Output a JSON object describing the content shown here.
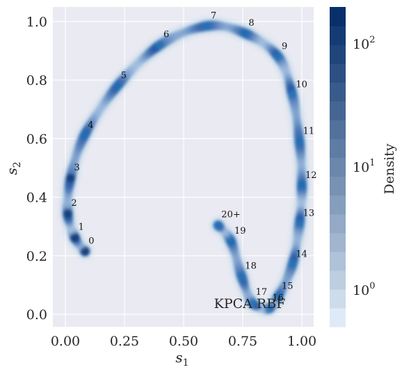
{
  "chart_data": {
    "type": "scatter",
    "title": "",
    "xlabel": "s",
    "xlabel_sub": "1",
    "ylabel": "s",
    "ylabel_sub": "2",
    "xlim": [
      -0.05,
      1.05
    ],
    "ylim": [
      -0.05,
      1.05
    ],
    "xticks": [
      {
        "value": 0.0,
        "label": "0.00"
      },
      {
        "value": 0.25,
        "label": "0.25"
      },
      {
        "value": 0.5,
        "label": "0.50"
      },
      {
        "value": 0.75,
        "label": "0.75"
      },
      {
        "value": 1.0,
        "label": "1.00"
      }
    ],
    "yticks": [
      {
        "value": 0.0,
        "label": "0.0"
      },
      {
        "value": 0.2,
        "label": "0.2"
      },
      {
        "value": 0.4,
        "label": "0.4"
      },
      {
        "value": 0.6,
        "label": "0.6"
      },
      {
        "value": 0.8,
        "label": "0.8"
      },
      {
        "value": 1.0,
        "label": "1.0"
      }
    ],
    "grid": true,
    "inset_text": "KPCA RBF",
    "clusters": [
      {
        "label": "0",
        "x": 0.083,
        "y": 0.215
      },
      {
        "label": "1",
        "x": 0.04,
        "y": 0.262
      },
      {
        "label": "2",
        "x": 0.01,
        "y": 0.345
      },
      {
        "label": "3",
        "x": 0.022,
        "y": 0.465
      },
      {
        "label": "4",
        "x": 0.08,
        "y": 0.61
      },
      {
        "label": "5",
        "x": 0.22,
        "y": 0.78
      },
      {
        "label": "6",
        "x": 0.4,
        "y": 0.92
      },
      {
        "label": "7",
        "x": 0.6,
        "y": 0.985
      },
      {
        "label": "8",
        "x": 0.76,
        "y": 0.96
      },
      {
        "label": "9",
        "x": 0.9,
        "y": 0.88
      },
      {
        "label": "10",
        "x": 0.96,
        "y": 0.75
      },
      {
        "label": "11",
        "x": 0.99,
        "y": 0.59
      },
      {
        "label": "12",
        "x": 1.0,
        "y": 0.44
      },
      {
        "label": "13",
        "x": 0.99,
        "y": 0.31
      },
      {
        "label": "14",
        "x": 0.96,
        "y": 0.17
      },
      {
        "label": "15",
        "x": 0.9,
        "y": 0.06
      },
      {
        "label": "16",
        "x": 0.86,
        "y": 0.02
      },
      {
        "label": "17",
        "x": 0.79,
        "y": 0.04
      },
      {
        "label": "18",
        "x": 0.745,
        "y": 0.13
      },
      {
        "label": "19",
        "x": 0.7,
        "y": 0.25
      },
      {
        "label": "20+",
        "x": 0.645,
        "y": 0.305
      }
    ],
    "colorbar": {
      "label": "Density",
      "scale": "log",
      "range": [
        0.5,
        200
      ],
      "ticks": [
        {
          "value": 1,
          "base": "10",
          "exp": "0"
        },
        {
          "value": 10,
          "base": "10",
          "exp": "1"
        },
        {
          "value": 100,
          "base": "10",
          "exp": "2"
        }
      ],
      "cmap": "Blues"
    }
  }
}
